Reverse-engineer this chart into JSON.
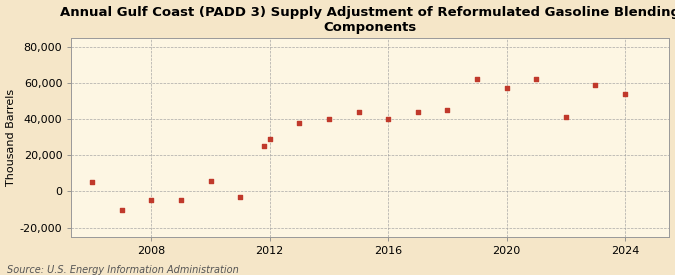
{
  "title_line1": "Annual Gulf Coast (PADD 3) Supply Adjustment of Reformulated Gasoline Blending",
  "title_line2": "Components",
  "ylabel": "Thousand Barrels",
  "source": "Source: U.S. Energy Information Administration",
  "background_color": "#f5e6c8",
  "plot_bg_color": "#fdf6e3",
  "marker_color": "#c0392b",
  "years": [
    2006,
    2007,
    2008,
    2009,
    2010,
    2011,
    2011.8,
    2012,
    2013,
    2014,
    2015,
    2016,
    2017,
    2018,
    2019,
    2020,
    2021,
    2022,
    2023,
    2024
  ],
  "values": [
    5000,
    -10000,
    -5000,
    -4500,
    5500,
    -3000,
    25000,
    29000,
    38000,
    40000,
    44000,
    40000,
    44000,
    45000,
    62000,
    57000,
    62000,
    41000,
    59000,
    54000
  ],
  "xlim": [
    2005.3,
    2025.5
  ],
  "ylim": [
    -25000,
    85000
  ],
  "yticks": [
    -20000,
    0,
    20000,
    40000,
    60000,
    80000
  ],
  "xticks": [
    2008,
    2012,
    2016,
    2020,
    2024
  ],
  "grid_color": "#a0a0a0",
  "title_fontsize": 9.5,
  "axis_fontsize": 8,
  "tick_fontsize": 8,
  "source_fontsize": 7
}
